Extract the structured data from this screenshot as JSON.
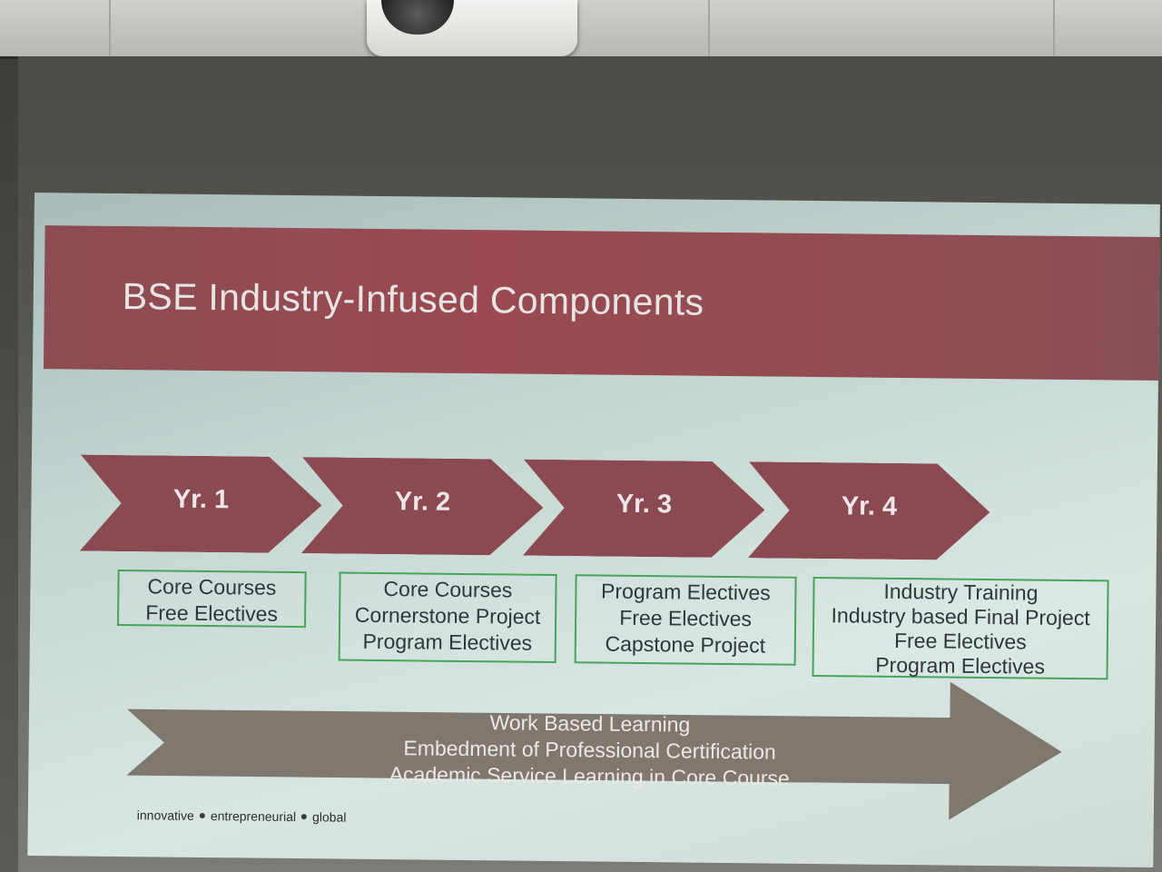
{
  "slide": {
    "title": "BSE Industry-Infused Components",
    "years": [
      {
        "label": "Yr. 1",
        "items": [
          "Core Courses",
          "Free Electives"
        ]
      },
      {
        "label": "Yr. 2",
        "items": [
          "Core Courses",
          "Cornerstone Project",
          "Program Electives"
        ]
      },
      {
        "label": "Yr. 3",
        "items": [
          "Program Electives",
          "Free Electives",
          "Capstone Project"
        ]
      },
      {
        "label": "Yr. 4",
        "items": [
          "Industry Training",
          "Industry based Final Project",
          "Free Electives",
          "Program Electives"
        ]
      }
    ],
    "arrow_items": [
      "Work Based Learning",
      "Embedment of Professional Certification",
      "Academic Service Learning in Core Course"
    ],
    "footer": [
      "innovative",
      "entrepreneurial",
      "global"
    ]
  },
  "colors": {
    "title_band": "#9a4a50",
    "chevron": "#8b4a52",
    "box_border": "#45a655",
    "big_arrow": "#7f786e",
    "slide_bg": "#c4d6d2"
  }
}
